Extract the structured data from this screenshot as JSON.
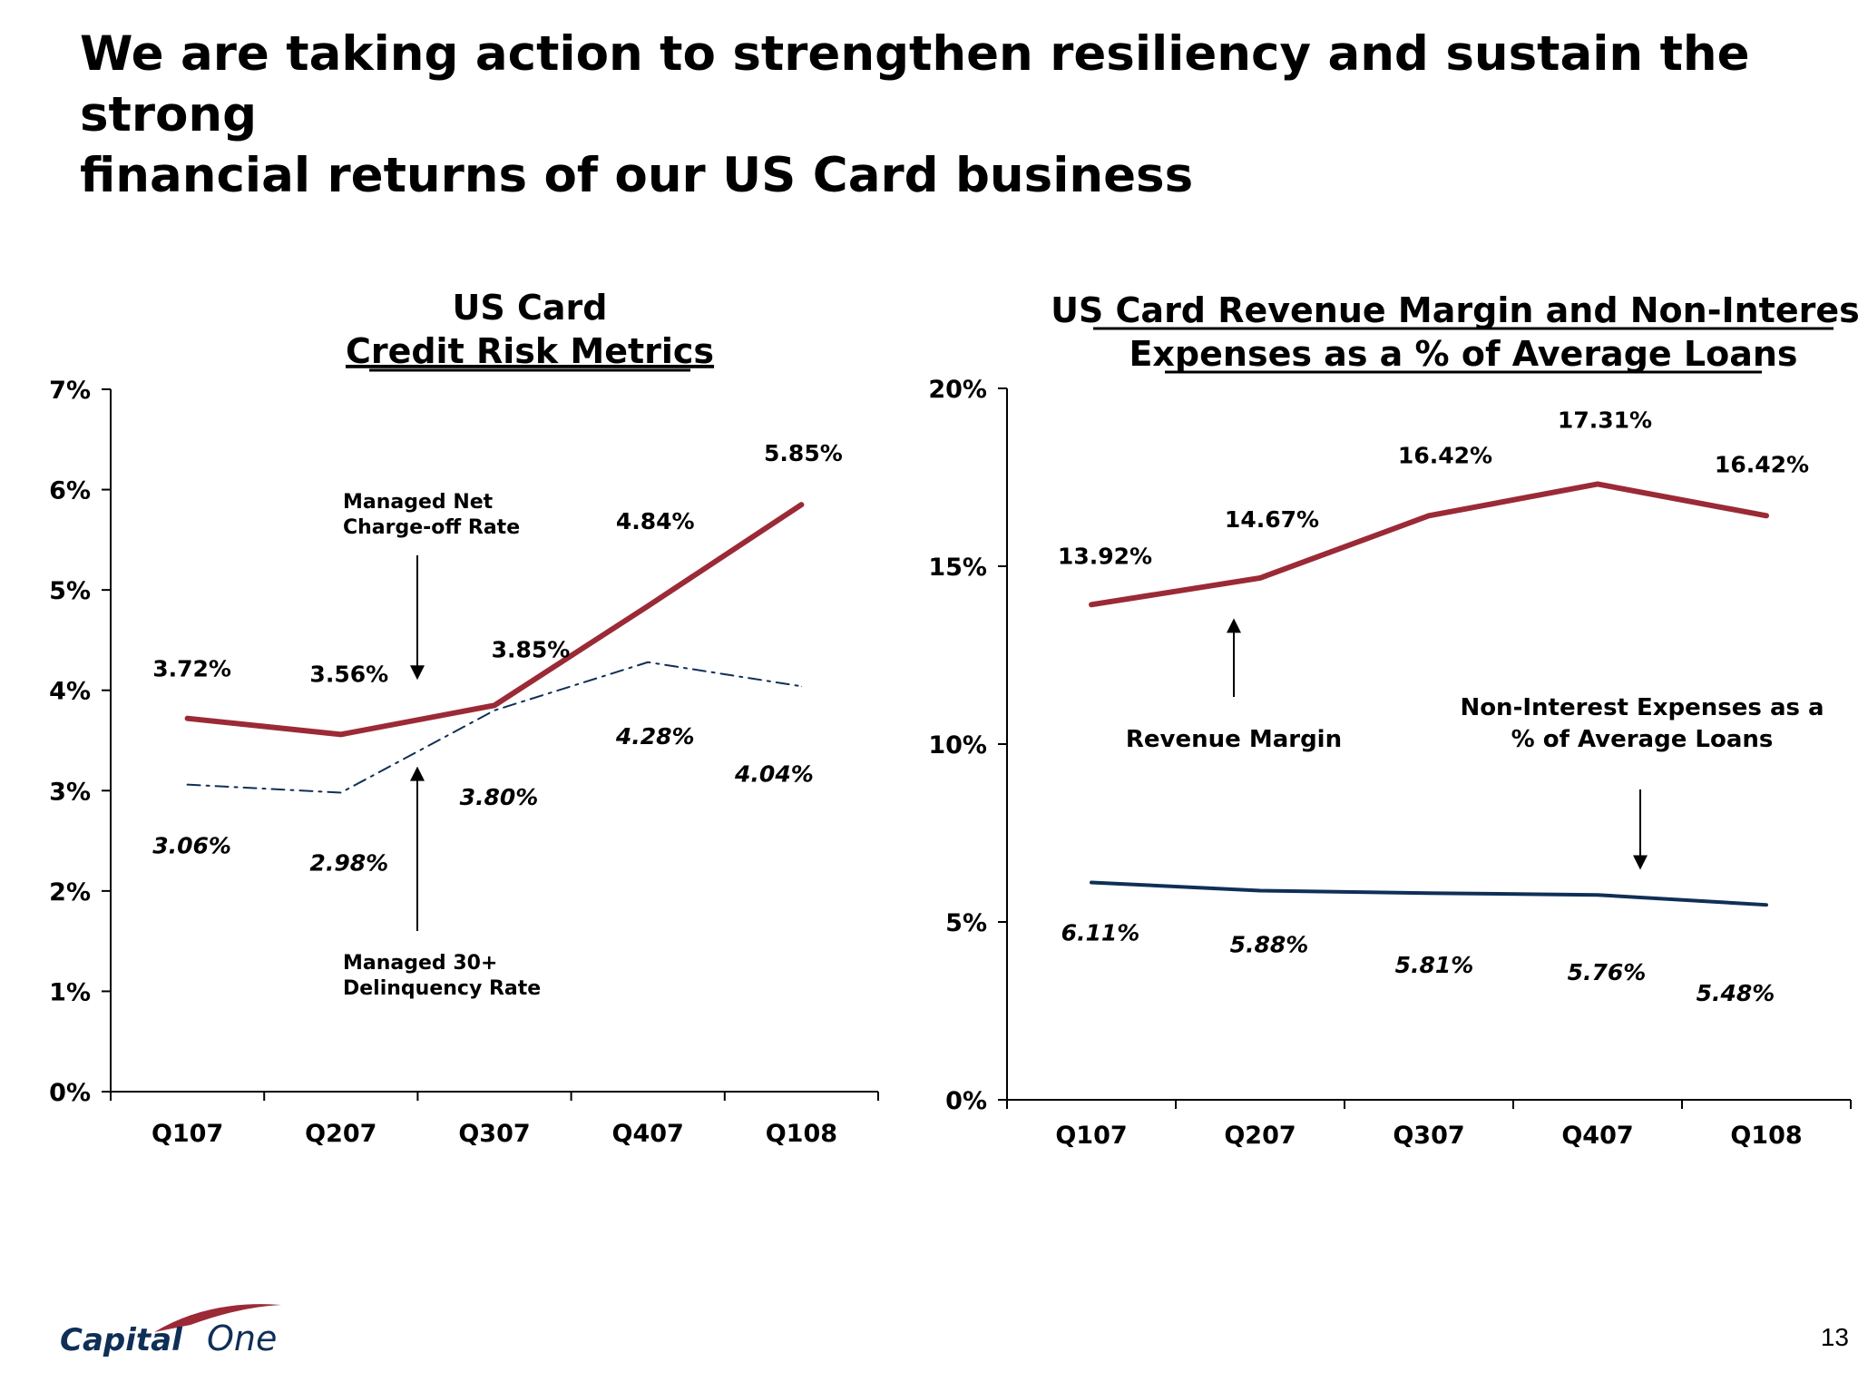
{
  "slide": {
    "title_line1": "We are taking action to strengthen resiliency and sustain the strong",
    "title_line2": "financial returns of our US Card business",
    "page_number": "13"
  },
  "logo": {
    "text_capital": "Capital",
    "text_one": "One"
  },
  "colors": {
    "red": "#9b2a36",
    "navy": "#0f2f57",
    "axis": "#000000"
  },
  "chart_data": [
    {
      "type": "line",
      "title_line1": "US Card",
      "title_line2": "Credit Risk Metrics",
      "categories": [
        "Q107",
        "Q207",
        "Q307",
        "Q407",
        "Q108"
      ],
      "y_ticks": [
        "0%",
        "1%",
        "2%",
        "3%",
        "4%",
        "5%",
        "6%",
        "7%"
      ],
      "ylim": [
        0,
        7
      ],
      "grid": false,
      "series": [
        {
          "name": "Managed Net Charge-off Rate",
          "values": [
            3.72,
            3.56,
            3.85,
            4.84,
            5.85
          ],
          "labels": [
            "3.72%",
            "3.56%",
            "3.85%",
            "4.84%",
            "5.85%"
          ],
          "color": "#9b2a36",
          "style": "solid"
        },
        {
          "name": "Managed 30+ Delinquency Rate",
          "values": [
            3.06,
            2.98,
            3.8,
            4.28,
            4.04
          ],
          "labels": [
            "3.06%",
            "2.98%",
            "3.80%",
            "4.28%",
            "4.04%"
          ],
          "color": "#0f2f57",
          "style": "dash-dot"
        }
      ],
      "annotations": {
        "charge_off_line1": "Managed Net",
        "charge_off_line2": "Charge-off Rate",
        "delinquency_line1": "Managed 30+",
        "delinquency_line2": "Delinquency Rate"
      }
    },
    {
      "type": "line",
      "title_line1": "US Card Revenue Margin and Non-Interest",
      "title_line2": "Expenses as a % of Average Loans",
      "categories": [
        "Q107",
        "Q207",
        "Q307",
        "Q407",
        "Q108"
      ],
      "y_ticks": [
        "0%",
        "5%",
        "10%",
        "15%",
        "20%"
      ],
      "ylim": [
        0,
        20
      ],
      "grid": false,
      "series": [
        {
          "name": "Revenue Margin",
          "values": [
            13.92,
            14.67,
            16.42,
            17.31,
            16.42
          ],
          "labels": [
            "13.92%",
            "14.67%",
            "16.42%",
            "17.31%",
            "16.42%"
          ],
          "color": "#9b2a36",
          "style": "solid"
        },
        {
          "name": "Non-Interest Expenses as a % of Average Loans",
          "values": [
            6.11,
            5.88,
            5.81,
            5.76,
            5.48
          ],
          "labels": [
            "6.11%",
            "5.88%",
            "5.81%",
            "5.76%",
            "5.48%"
          ],
          "color": "#0f2f57",
          "style": "solid"
        }
      ],
      "annotations": {
        "revenue": "Revenue Margin",
        "expense_line1": "Non-Interest Expenses as a",
        "expense_line2": "% of Average Loans"
      }
    }
  ]
}
